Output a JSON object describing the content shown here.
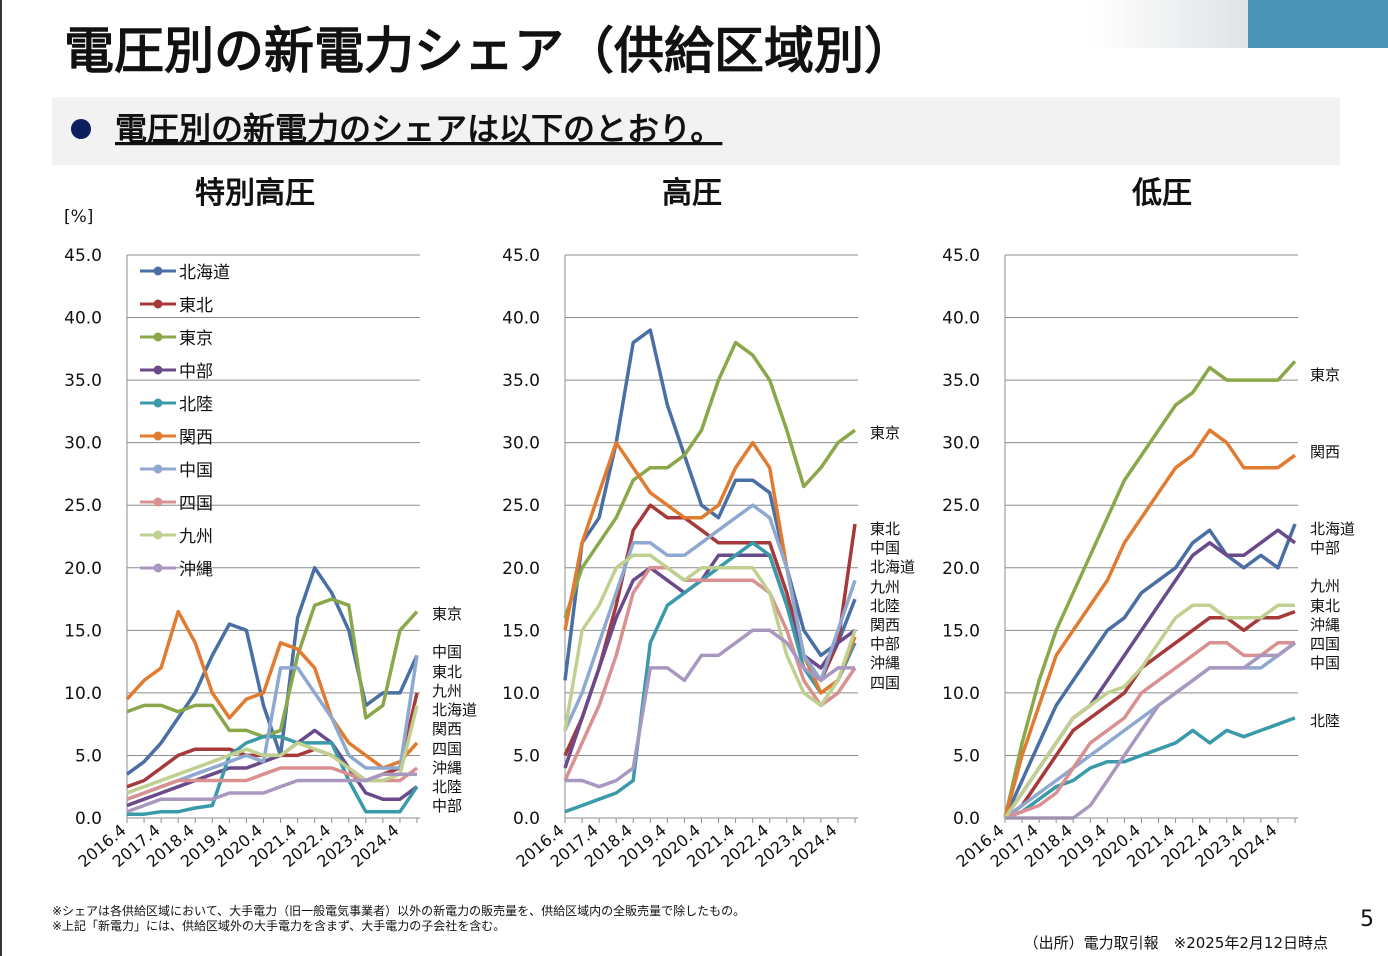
{
  "header": {
    "title": "電圧別の新電力シェア（供給区域別）",
    "subtitle": "電圧別の新電力のシェアは以下のとおり。"
  },
  "chart_data": [
    {
      "type": "line",
      "title": "特別高圧",
      "y_label": "[%]",
      "legend": true,
      "categories": [
        "2016.4",
        null,
        "2017.4",
        null,
        "2018.4",
        null,
        "2019.4",
        null,
        "2020.4",
        null,
        "2021.4",
        null,
        "2022.4",
        null,
        "2023.4",
        null,
        "2024.4",
        null
      ],
      "ylim": [
        0,
        45
      ],
      "yticks": [
        {
          "value": 0,
          "label": "0.0"
        },
        {
          "value": 5,
          "label": "5.0"
        },
        {
          "value": 10,
          "label": "10.0"
        },
        {
          "value": 15,
          "label": "15.0"
        },
        {
          "value": 20,
          "label": "20.0"
        },
        {
          "value": 25,
          "label": "25.0"
        },
        {
          "value": 30,
          "label": "30.0"
        },
        {
          "value": 35,
          "label": "35.0"
        },
        {
          "value": 40,
          "label": "40.0"
        },
        {
          "value": 45,
          "label": "45.0"
        }
      ],
      "grid": true,
      "series": [
        {
          "name": "北海道",
          "color": "#4a6fa5",
          "values": [
            3.5,
            4.5,
            6,
            8,
            10,
            13,
            15.5,
            15,
            9,
            5,
            16,
            20,
            18,
            15,
            9,
            10,
            10,
            13
          ]
        },
        {
          "name": "東北",
          "color": "#a63a3a",
          "values": [
            2.5,
            3,
            4,
            5,
            5.5,
            5.5,
            5.5,
            5,
            5,
            5,
            5,
            5.5,
            5,
            4,
            3,
            3.5,
            4,
            10
          ]
        },
        {
          "name": "東京",
          "color": "#8aa84a",
          "values": [
            8.5,
            9,
            9,
            8.5,
            9,
            9,
            7,
            7,
            6.5,
            7,
            13,
            17,
            17.5,
            17,
            8,
            9,
            15,
            16.5
          ]
        },
        {
          "name": "中部",
          "color": "#6a4a8a",
          "values": [
            1,
            1.5,
            2,
            2.5,
            3,
            3.5,
            4,
            4,
            4.5,
            5,
            6,
            7,
            6,
            4,
            2,
            1.5,
            1.5,
            2.5
          ]
        },
        {
          "name": "北陸",
          "color": "#3a9aaa",
          "values": [
            0.3,
            0.3,
            0.5,
            0.5,
            0.8,
            1,
            5,
            6,
            6.5,
            6.5,
            6,
            6,
            6,
            3,
            0.5,
            0.5,
            0.5,
            2.5
          ]
        },
        {
          "name": "関西",
          "color": "#e07b30",
          "values": [
            9.5,
            11,
            12,
            16.5,
            14,
            10,
            8,
            9.5,
            10,
            14,
            13.5,
            12,
            8,
            6,
            5,
            4,
            4.5,
            6
          ]
        },
        {
          "name": "中国",
          "color": "#8fa8d0",
          "values": [
            1.5,
            2,
            2.5,
            3,
            3.5,
            4,
            4.5,
            5,
            4.5,
            12,
            12,
            10,
            8,
            5,
            4,
            4,
            4,
            13
          ]
        },
        {
          "name": "四国",
          "color": "#d99090",
          "values": [
            1.5,
            2,
            2.5,
            3,
            3,
            3,
            3,
            3,
            3.5,
            4,
            4,
            4,
            4,
            3.5,
            3,
            3,
            3,
            4
          ]
        },
        {
          "name": "九州",
          "color": "#c0d090",
          "values": [
            2,
            2.5,
            3,
            3.5,
            4,
            4.5,
            5,
            5.5,
            5,
            5,
            6,
            5.5,
            5,
            4,
            3,
            3,
            3.5,
            9
          ]
        },
        {
          "name": "沖縄",
          "color": "#a898c0",
          "values": [
            0.5,
            1,
            1.5,
            1.5,
            1.5,
            1.5,
            2,
            2,
            2,
            2.5,
            3,
            3,
            3,
            3,
            3,
            3.5,
            3.5,
            3.5
          ]
        }
      ],
      "end_labels": [
        "東京",
        "中国",
        "東北",
        "九州",
        "北海道",
        "関西",
        "四国",
        "沖縄",
        "北陸",
        "中部"
      ]
    },
    {
      "type": "line",
      "title": "高圧",
      "legend": false,
      "categories": [
        "2016.4",
        null,
        "2017.4",
        null,
        "2018.4",
        null,
        "2019.4",
        null,
        "2020.4",
        null,
        "2021.4",
        null,
        "2022.4",
        null,
        "2023.4",
        null,
        "2024.4",
        null
      ],
      "ylim": [
        0,
        45
      ],
      "yticks": [
        {
          "value": 0,
          "label": "0.0"
        },
        {
          "value": 5,
          "label": "5.0"
        },
        {
          "value": 10,
          "label": "10.0"
        },
        {
          "value": 15,
          "label": "15.0"
        },
        {
          "value": 20,
          "label": "20.0"
        },
        {
          "value": 25,
          "label": "25.0"
        },
        {
          "value": 30,
          "label": "30.0"
        },
        {
          "value": 35,
          "label": "35.0"
        },
        {
          "value": 40,
          "label": "40.0"
        },
        {
          "value": 45,
          "label": "45.0"
        }
      ],
      "grid": true,
      "series": [
        {
          "color": "#4a6fa5",
          "values": [
            11,
            22,
            24,
            30,
            38,
            39,
            33,
            29,
            25,
            24,
            27,
            27,
            26,
            20,
            15,
            13,
            14,
            17.5
          ]
        },
        {
          "color": "#a63a3a",
          "values": [
            5,
            8,
            12,
            17,
            23,
            25,
            24,
            24,
            23,
            22,
            22,
            22,
            22,
            18,
            13,
            11,
            14,
            23.5
          ]
        },
        {
          "color": "#8aa84a",
          "values": [
            16,
            20,
            22,
            24,
            27,
            28,
            28,
            29,
            31,
            35,
            38,
            37,
            35,
            31,
            26.5,
            28,
            30,
            31
          ]
        },
        {
          "color": "#6a4a8a",
          "values": [
            4,
            8,
            12,
            16,
            19,
            20,
            19,
            18,
            19,
            21,
            21,
            21,
            21,
            17,
            13,
            12,
            14,
            15
          ]
        },
        {
          "color": "#3a9aaa",
          "values": [
            0.5,
            1,
            1.5,
            2,
            3,
            14,
            17,
            18,
            19,
            20,
            21,
            22,
            21,
            17,
            12,
            10,
            11,
            14
          ]
        },
        {
          "color": "#e07b30",
          "values": [
            15,
            22,
            26,
            30,
            28,
            26,
            25,
            24,
            24,
            25,
            28,
            30,
            28,
            20,
            13,
            10,
            11,
            14.5
          ]
        },
        {
          "color": "#8fa8d0",
          "values": [
            7,
            10,
            14,
            18,
            22,
            22,
            21,
            21,
            22,
            23,
            24,
            25,
            24,
            20,
            13,
            11,
            15,
            19
          ]
        },
        {
          "color": "#d99090",
          "values": [
            3,
            6,
            9,
            13,
            18,
            20,
            20,
            19,
            19,
            19,
            19,
            19,
            18,
            15,
            11,
            9,
            10,
            12
          ]
        },
        {
          "color": "#c0d090",
          "values": [
            7,
            15,
            17,
            20,
            21,
            21,
            20,
            19,
            20,
            20,
            20,
            20,
            18,
            13,
            10,
            9,
            11,
            15
          ]
        },
        {
          "color": "#a898c0",
          "values": [
            3,
            3,
            2.5,
            3,
            4,
            12,
            12,
            11,
            13,
            13,
            14,
            15,
            15,
            14,
            12,
            11,
            12,
            12
          ]
        }
      ],
      "end_labels": [
        "東京",
        "東北",
        "中国",
        "北海道",
        "九州",
        "北陸",
        "関西",
        "中部",
        "沖縄",
        "四国"
      ]
    },
    {
      "type": "line",
      "title": "低圧",
      "legend": false,
      "categories": [
        "2016.4",
        null,
        "2017.4",
        null,
        "2018.4",
        null,
        "2019.4",
        null,
        "2020.4",
        null,
        "2021.4",
        null,
        "2022.4",
        null,
        "2023.4",
        null,
        "2024.4",
        null
      ],
      "ylim": [
        0,
        45
      ],
      "yticks": [
        {
          "value": 0,
          "label": "0.0"
        },
        {
          "value": 5,
          "label": "5.0"
        },
        {
          "value": 10,
          "label": "10.0"
        },
        {
          "value": 15,
          "label": "15.0"
        },
        {
          "value": 20,
          "label": "20.0"
        },
        {
          "value": 25,
          "label": "25.0"
        },
        {
          "value": 30,
          "label": "30.0"
        },
        {
          "value": 35,
          "label": "35.0"
        },
        {
          "value": 40,
          "label": "40.0"
        },
        {
          "value": 45,
          "label": "45.0"
        }
      ],
      "grid": true,
      "series": [
        {
          "color": "#4a6fa5",
          "values": [
            0,
            3,
            6,
            9,
            11,
            13,
            15,
            16,
            18,
            19,
            20,
            22,
            23,
            21,
            20,
            21,
            20,
            23.5
          ]
        },
        {
          "color": "#a63a3a",
          "values": [
            0,
            1,
            3,
            5,
            7,
            8,
            9,
            10,
            12,
            13,
            14,
            15,
            16,
            16,
            15,
            16,
            16,
            16.5
          ]
        },
        {
          "color": "#8aa84a",
          "values": [
            0,
            6,
            11,
            15,
            18,
            21,
            24,
            27,
            29,
            31,
            33,
            34,
            36,
            35,
            35,
            35,
            35,
            36.5
          ]
        },
        {
          "color": "#6a4a8a",
          "values": [
            0,
            2,
            4,
            6,
            8,
            9,
            11,
            13,
            15,
            17,
            19,
            21,
            22,
            21,
            21,
            22,
            23,
            22
          ]
        },
        {
          "color": "#3a9aaa",
          "values": [
            0,
            0.5,
            1.5,
            2.5,
            3,
            4,
            4.5,
            4.5,
            5,
            5.5,
            6,
            7,
            6,
            7,
            6.5,
            7,
            7.5,
            8
          ]
        },
        {
          "color": "#e07b30",
          "values": [
            0,
            5,
            9,
            13,
            15,
            17,
            19,
            22,
            24,
            26,
            28,
            29,
            31,
            30,
            28,
            28,
            28,
            29
          ]
        },
        {
          "color": "#8fa8d0",
          "values": [
            0,
            1,
            2,
            3,
            4,
            5,
            6,
            7,
            8,
            9,
            10,
            11,
            12,
            12,
            12,
            12,
            13,
            14
          ]
        },
        {
          "color": "#d99090",
          "values": [
            0,
            0.5,
            1,
            2,
            4,
            6,
            7,
            8,
            10,
            11,
            12,
            13,
            14,
            14,
            13,
            13,
            14,
            14
          ]
        },
        {
          "color": "#c0d090",
          "values": [
            0,
            2,
            4,
            6,
            8,
            9,
            10,
            10.5,
            12,
            14,
            16,
            17,
            17,
            16,
            16,
            16,
            17,
            17
          ]
        },
        {
          "color": "#a898c0",
          "values": [
            0,
            0,
            0,
            0,
            0,
            1,
            3,
            5,
            7,
            9,
            10,
            11,
            12,
            12,
            12,
            13,
            13,
            14
          ]
        }
      ],
      "end_labels": [
        "東京",
        "関西",
        "北海道",
        "中部",
        "九州",
        "東北",
        "沖縄",
        "四国",
        "中国",
        "北陸"
      ]
    }
  ],
  "footnotes": [
    "※シェアは各供給区域において、大手電力（旧一般電気事業者）以外の新電力の販売量を、供給区域内の全販売量で除したもの。",
    "※上記「新電力」には、供給区域外の大手電力を含まず、大手電力の子会社を含む。"
  ],
  "source": "（出所）電力取引報　※2025年2月12日時点",
  "page_number": "5"
}
